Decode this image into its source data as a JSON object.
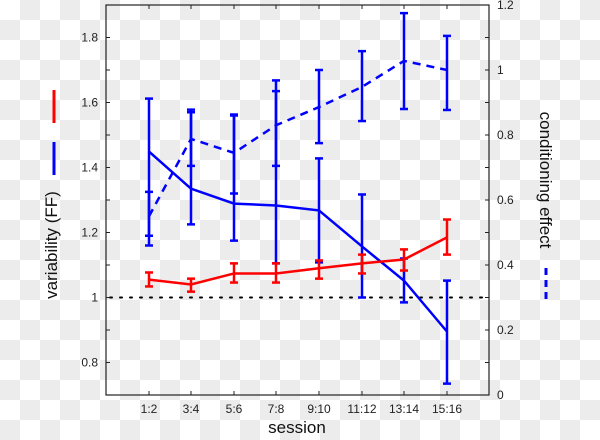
{
  "chart_data": {
    "type": "line",
    "title": "",
    "xlabel": "session",
    "ylabel": "variability (FF)",
    "y2label": "conditioning effect",
    "categories": [
      "1:2",
      "3:4",
      "5:6",
      "7:8",
      "9:10",
      "11:12",
      "13:14",
      "15:16"
    ],
    "ylim": [
      0.7,
      1.9
    ],
    "y2lim": [
      0,
      1.2
    ],
    "yticks": [
      0.8,
      1,
      1.2,
      1.4,
      1.6,
      1.8
    ],
    "ytick_labels": [
      "0.8",
      "1",
      "1.2",
      "1.4",
      "1.6",
      "1.8"
    ],
    "y2ticks": [
      0,
      0.2,
      0.4,
      0.6,
      0.8,
      1,
      1.2
    ],
    "y2tick_labels": [
      "0",
      "0.2",
      "0.4",
      "0.6",
      "0.8",
      "1",
      "1.2"
    ],
    "reference_line": {
      "y": 1.0,
      "style": "dotted",
      "color": "#000000"
    },
    "grid": false,
    "series": [
      {
        "name": "variability red (FF)",
        "axis": "left",
        "color": "#ff0000",
        "style": "solid",
        "values": [
          1.055,
          1.04,
          1.074,
          1.074,
          1.09,
          1.105,
          1.117,
          1.185
        ],
        "err_low": [
          1.034,
          1.018,
          1.046,
          1.046,
          1.058,
          1.074,
          1.083,
          1.132
        ],
        "err_high": [
          1.077,
          1.058,
          1.105,
          1.105,
          1.114,
          1.132,
          1.148,
          1.24
        ]
      },
      {
        "name": "variability blue (FF)",
        "axis": "left",
        "color": "#0000ff",
        "style": "solid",
        "values": [
          1.449,
          1.335,
          1.289,
          1.283,
          1.268,
          1.157,
          1.052,
          0.895
        ],
        "err_low": [
          1.16,
          1.225,
          1.175,
          1.105,
          1.108,
          1.0,
          0.985,
          0.735
        ],
        "err_high": [
          1.612,
          1.578,
          1.563,
          1.668,
          1.428,
          1.317,
          1.12,
          1.052
        ]
      },
      {
        "name": "conditioning effect",
        "axis": "right",
        "color": "#0000ff",
        "style": "dashed",
        "values": [
          0.55,
          0.788,
          0.745,
          0.83,
          0.886,
          0.948,
          1.028,
          1.0
        ],
        "err_low": [
          0.49,
          0.705,
          0.62,
          0.705,
          0.775,
          0.843,
          0.88,
          0.877
        ],
        "err_high": [
          0.625,
          0.87,
          0.86,
          0.935,
          1.0,
          1.058,
          1.175,
          1.105
        ]
      }
    ],
    "legend": [
      {
        "label": "red solid",
        "color": "#ff0000",
        "style": "solid",
        "position": "left"
      },
      {
        "label": "blue solid",
        "color": "#0000ff",
        "style": "solid",
        "position": "left"
      },
      {
        "label": "blue dashed",
        "color": "#0000ff",
        "style": "dashed",
        "position": "right"
      }
    ]
  }
}
